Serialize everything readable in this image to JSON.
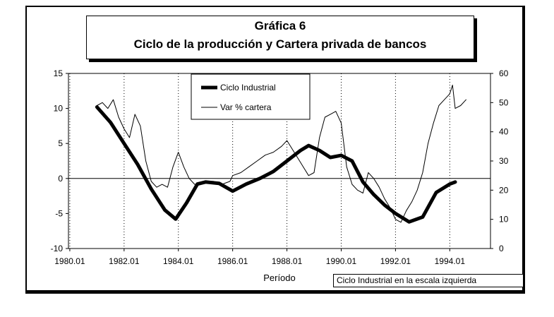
{
  "chart_data": {
    "type": "line",
    "title": "Gráfica 6",
    "subtitle": "Ciclo de la producción y Cartera privada de bancos",
    "xlabel": "Período",
    "note": "Ciclo Industrial en la escala izquierda",
    "x_ticks": [
      "1980.01",
      "1982.01",
      "1984.01",
      "1986.01",
      "1988.01",
      "1990.01",
      "1992.01",
      "1994.01"
    ],
    "x_tick_values": [
      1980.0,
      1982.0,
      1984.0,
      1986.0,
      1988.0,
      1990.0,
      1992.0,
      1994.0
    ],
    "xlim": [
      1979.95,
      1995.5
    ],
    "y_left": {
      "ticks": [
        "15",
        "10",
        "5",
        "0",
        "-5",
        "-10"
      ],
      "tick_values": [
        15,
        10,
        5,
        0,
        -5,
        -10
      ],
      "lim": [
        -10,
        15
      ]
    },
    "y_right": {
      "ticks": [
        "60",
        "50",
        "40",
        "30",
        "20",
        "10",
        "0"
      ],
      "tick_values": [
        60,
        50,
        40,
        30,
        20,
        10,
        0
      ],
      "lim": [
        0,
        60
      ]
    },
    "grid": "vertical dotted lines at x ticks",
    "legend": {
      "position": "top-center",
      "entries": [
        "Ciclo Industrial",
        "Var % cartera"
      ]
    },
    "series": [
      {
        "name": "Ciclo Industrial",
        "axis": "left",
        "style": "thick",
        "x": [
          1981.0,
          1981.5,
          1982.0,
          1982.5,
          1983.0,
          1983.5,
          1983.9,
          1984.3,
          1984.7,
          1985.0,
          1985.5,
          1986.0,
          1986.5,
          1987.0,
          1987.5,
          1988.0,
          1988.5,
          1988.8,
          1989.2,
          1989.6,
          1990.0,
          1990.4,
          1990.8,
          1991.2,
          1991.6,
          1992.0,
          1992.5,
          1993.0,
          1993.5,
          1994.0,
          1994.2
        ],
        "y": [
          10.2,
          8.0,
          5.0,
          2.0,
          -1.5,
          -4.5,
          -5.8,
          -3.5,
          -0.8,
          -0.5,
          -0.7,
          -1.8,
          -0.8,
          0.0,
          1.0,
          2.5,
          4.0,
          4.7,
          4.0,
          3.0,
          3.3,
          2.5,
          -0.5,
          -2.3,
          -3.8,
          -5.0,
          -6.2,
          -5.5,
          -2.0,
          -0.8,
          -0.5
        ]
      },
      {
        "name": "Var % cartera",
        "axis": "right",
        "style": "thin",
        "x": [
          1981.0,
          1981.2,
          1981.4,
          1981.6,
          1981.8,
          1982.0,
          1982.2,
          1982.4,
          1982.6,
          1982.8,
          1983.0,
          1983.2,
          1983.4,
          1983.6,
          1983.8,
          1984.0,
          1984.2,
          1984.4,
          1984.6,
          1984.8,
          1985.0,
          1985.3,
          1985.6,
          1985.9,
          1986.0,
          1986.3,
          1986.6,
          1986.9,
          1987.2,
          1987.5,
          1987.8,
          1988.0,
          1988.2,
          1988.4,
          1988.6,
          1988.8,
          1989.0,
          1989.2,
          1989.4,
          1989.6,
          1989.8,
          1990.0,
          1990.2,
          1990.4,
          1990.6,
          1990.8,
          1991.0,
          1991.2,
          1991.4,
          1991.6,
          1991.8,
          1992.0,
          1992.2,
          1992.4,
          1992.6,
          1992.8,
          1993.0,
          1993.2,
          1993.4,
          1993.6,
          1993.8,
          1994.0,
          1994.1,
          1994.2,
          1994.4,
          1994.6
        ],
        "y": [
          49,
          50,
          48,
          51,
          45,
          41,
          38,
          46,
          42,
          30,
          23,
          21,
          22,
          21,
          28,
          33,
          28,
          24,
          22,
          22,
          23,
          23,
          22,
          23,
          25,
          26,
          28,
          30,
          32,
          33,
          35,
          37,
          34,
          31,
          28,
          25,
          26,
          38,
          45,
          46,
          47,
          43,
          28,
          22,
          20,
          19,
          26,
          24,
          21,
          17,
          14,
          10,
          9,
          13,
          16,
          20,
          26,
          36,
          43,
          49,
          51,
          53,
          56,
          48,
          49,
          51
        ]
      }
    ]
  }
}
